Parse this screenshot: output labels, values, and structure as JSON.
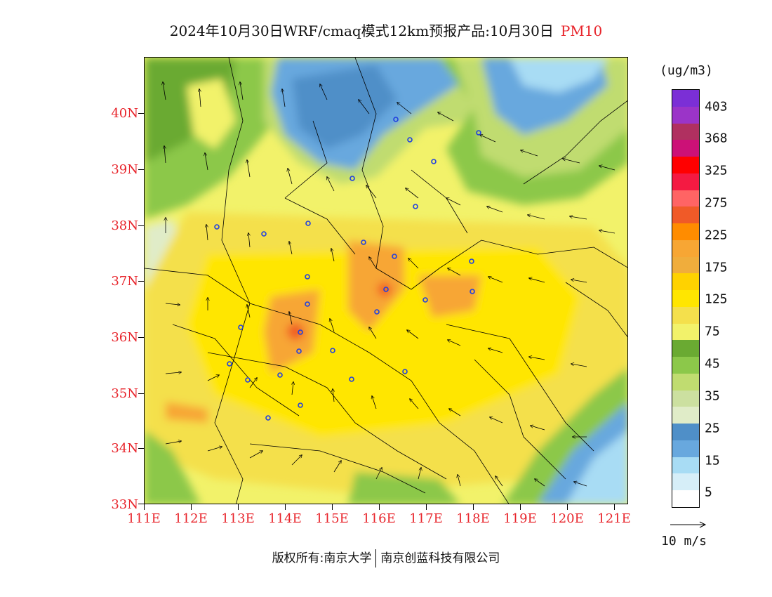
{
  "title": {
    "text": "2024年10月30日WRF/cmaq模式12km预报产品:10月30日",
    "pollutant": "PM10"
  },
  "map": {
    "lat_labels": [
      "40N",
      "39N",
      "38N",
      "37N",
      "36N",
      "35N",
      "34N",
      "33N"
    ],
    "lon_labels": [
      "111E",
      "112E",
      "113E",
      "114E",
      "115E",
      "116E",
      "117E",
      "118E",
      "119E",
      "120E",
      "121E"
    ],
    "lat_range": [
      33,
      40.8
    ],
    "lon_range": [
      111,
      121.3
    ]
  },
  "legend": {
    "unit": "(ug/m3)",
    "labels": [
      "403",
      "368",
      "325",
      "275",
      "225",
      "175",
      "125",
      "75",
      "45",
      "35",
      "25",
      "15",
      "5"
    ],
    "colors": [
      "#7b2fd6",
      "#9b34c8",
      "#b03060",
      "#cc1177",
      "#ff0000",
      "#f41a42",
      "#ff6464",
      "#f05a28",
      "#ff8c00",
      "#f7a634",
      "#f0ad3c",
      "#ffd200",
      "#ffe600",
      "#f4e04c",
      "#f2f26a",
      "#6aaa32",
      "#8cc84a",
      "#c0dc70",
      "#cce0a0",
      "#e0ecc8",
      "#4f8fc8",
      "#68a8de",
      "#a8dcf4",
      "#d6eef8",
      "#ffffff"
    ]
  },
  "vector_key": {
    "label": "10 m/s"
  },
  "footer": {
    "left": "版权所有:南京大学",
    "right": "南京创蓝科技有限公司"
  }
}
